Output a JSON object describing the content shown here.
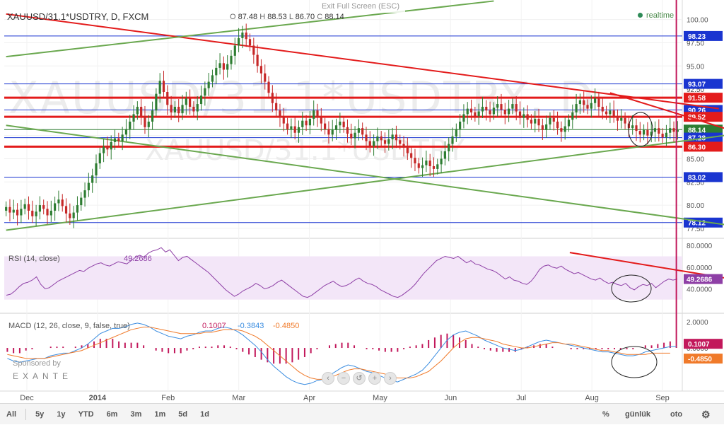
{
  "header": {
    "symbol": "XAUUSD/31.1*USDTRY, D, FXCM",
    "ohlc_open_label": "O",
    "ohlc_open": "87.48",
    "ohlc_high_label": "H",
    "ohlc_high": "88.53",
    "ohlc_low_label": "L",
    "ohlc_low": "86.70",
    "ohlc_close_label": "C",
    "ohlc_close": "88.14",
    "exit_fullscreen": "Exit Full Screen (ESC)",
    "realtime": "realtime"
  },
  "watermark": {
    "line1": "XAUUSD/31.1*USDTRY, D",
    "line2": "XAUUSD/31.1*USDTRY"
  },
  "colors": {
    "up": "#2e7d32",
    "down": "#c62828",
    "red_line": "#e31b1b",
    "green_line": "#6aa84f",
    "blue_line": "#1a35d0",
    "rsi": "#8e3fa6",
    "rsi_band": "#f3e6f8",
    "macd": "#3b8de0",
    "signal": "#f07a2a",
    "hist": "#c2185b"
  },
  "chart_data": [
    {
      "type": "candlestick",
      "title": "XAUUSD/31.1*USDTRY, D, FXCM",
      "x": [
        "Dec",
        "2014",
        "Feb",
        "Mar",
        "Apr",
        "May",
        "Jun",
        "Jul",
        "Aug",
        "Sep"
      ],
      "y_ticks": [
        "100.00",
        "97.50",
        "95.00",
        "92.50",
        "90.00",
        "87.50",
        "85.00",
        "82.50",
        "80.00",
        "77.50"
      ],
      "ylim": [
        76.5,
        101.5
      ],
      "price_levels": [
        {
          "value": 98.23,
          "label": "98.23",
          "color": "blue"
        },
        {
          "value": 93.07,
          "label": "93.07",
          "color": "blue"
        },
        {
          "value": 91.58,
          "label": "91.58",
          "color": "red"
        },
        {
          "value": 90.26,
          "label": "90.26",
          "color": "blue"
        },
        {
          "value": 89.52,
          "label": "89.52",
          "color": "red"
        },
        {
          "value": 88.14,
          "label": "88.14",
          "color": "green"
        },
        {
          "value": 87.28,
          "label": "87.28",
          "color": "blue"
        },
        {
          "value": 86.3,
          "label": "86.30",
          "color": "red"
        },
        {
          "value": 83.02,
          "label": "83.02",
          "color": "blue"
        },
        {
          "value": 78.12,
          "label": "78.12",
          "color": "blue"
        }
      ],
      "closes": [
        79.8,
        79.2,
        79.5,
        78.9,
        79.6,
        80.1,
        79.4,
        78.8,
        79.3,
        80.0,
        79.6,
        78.9,
        79.4,
        80.2,
        80.6,
        79.9,
        79.1,
        78.6,
        79.2,
        80.0,
        80.8,
        81.6,
        82.4,
        83.2,
        84.5,
        85.6,
        86.3,
        86.0,
        86.8,
        87.2,
        86.9,
        87.6,
        88.2,
        89.0,
        89.8,
        90.6,
        89.6,
        88.4,
        89.0,
        90.2,
        92.0,
        93.4,
        92.2,
        90.8,
        90.0,
        90.6,
        89.9,
        90.8,
        91.5,
        90.6,
        90.1,
        90.9,
        91.8,
        92.6,
        93.3,
        94.0,
        94.8,
        95.3,
        94.6,
        95.2,
        96.1,
        97.2,
        98.0,
        98.6,
        97.9,
        97.2,
        96.2,
        95.0,
        94.2,
        93.3,
        92.1,
        91.0,
        90.2,
        89.5,
        88.8,
        88.2,
        88.5,
        87.8,
        88.4,
        89.1,
        88.6,
        89.3,
        90.2,
        89.5,
        88.8,
        88.2,
        87.6,
        88.1,
        88.6,
        89.0,
        88.4,
        87.7,
        87.2,
        87.8,
        88.3,
        87.6,
        86.9,
        86.4,
        86.9,
        87.4,
        87.0,
        86.6,
        87.1,
        87.6,
        87.0,
        86.6,
        86.2,
        85.6,
        85.1,
        84.5,
        84.0,
        84.3,
        84.8,
        84.2,
        83.9,
        84.4,
        85.0,
        85.8,
        86.6,
        87.4,
        88.2,
        89.0,
        89.8,
        90.4,
        90.0,
        89.6,
        90.1,
        90.6,
        90.2,
        89.8,
        90.5,
        90.9,
        90.3,
        89.8,
        90.4,
        90.9,
        90.1,
        89.4,
        89.8,
        89.2,
        88.8,
        89.3,
        88.6,
        88.1,
        88.7,
        89.4,
        89.0,
        88.3,
        87.9,
        88.5,
        89.2,
        90.0,
        90.9,
        91.3,
        90.8,
        90.4,
        91.0,
        91.5,
        90.6,
        90.1,
        89.8,
        90.2,
        89.6,
        89.1,
        89.4,
        88.8,
        88.3,
        88.6,
        88.0,
        87.6,
        88.1,
        87.5,
        87.9,
        88.3,
        87.7,
        87.3,
        87.8,
        88.3,
        87.9,
        88.1
      ],
      "trendlines": [
        {
          "color": "red",
          "from": [
            0,
            100.6
          ],
          "to": [
            190,
            90.4
          ]
        },
        {
          "color": "red",
          "from": [
            161,
            92.1
          ],
          "to": [
            197,
            87.6
          ]
        },
        {
          "color": "green",
          "from": [
            0,
            77.3
          ],
          "to": [
            197,
            87.8
          ]
        },
        {
          "color": "green",
          "from": [
            0,
            88.6
          ],
          "to": [
            197,
            77.6
          ]
        },
        {
          "color": "green",
          "from": [
            0,
            96.0
          ],
          "to": [
            130,
            102.0
          ]
        }
      ]
    },
    {
      "type": "line",
      "title": "RSI (14, close)",
      "name": "RSI (14, close)",
      "last_value": "49.2686",
      "y_ticks": [
        "80.0000",
        "60.0000",
        "40.0000"
      ],
      "ylim": [
        18,
        86
      ],
      "band": [
        30,
        70
      ],
      "values": [
        34,
        35,
        38,
        42,
        45,
        46,
        48,
        51,
        44,
        40,
        41,
        44,
        47,
        49,
        51,
        53,
        55,
        57,
        56,
        59,
        61,
        63,
        64,
        62,
        61,
        63,
        65,
        64,
        63,
        66,
        69,
        71,
        69,
        73,
        75,
        76,
        78,
        74,
        76,
        71,
        66,
        69,
        70,
        67,
        64,
        61,
        58,
        55,
        51,
        47,
        43,
        39,
        36,
        33,
        35,
        38,
        40,
        42,
        45,
        43,
        40,
        41,
        43,
        46,
        48,
        45,
        42,
        39,
        36,
        33,
        32,
        34,
        37,
        40,
        43,
        45,
        47,
        44,
        42,
        43,
        45,
        48,
        50,
        47,
        45,
        44,
        42,
        39,
        37,
        35,
        33,
        32,
        34,
        37,
        40,
        44,
        49,
        54,
        58,
        62,
        66,
        68,
        70,
        69,
        68,
        70,
        67,
        64,
        66,
        63,
        62,
        60,
        58,
        57,
        55,
        52,
        49,
        51,
        48,
        47,
        45,
        44,
        47,
        52,
        58,
        61,
        62,
        60,
        59,
        61,
        58,
        56,
        54,
        55,
        53,
        51,
        49,
        48,
        50,
        47,
        45,
        46,
        44,
        43,
        45,
        41,
        39,
        42,
        44,
        43,
        45,
        41,
        44,
        47,
        49,
        48,
        49
      ],
      "trendline": {
        "from": [
          131,
          73.5
        ],
        "to": [
          197,
          30.5
        ]
      }
    },
    {
      "type": "line",
      "title": "MACD (12, 26, close, 9, false, true)",
      "series": [
        {
          "name": "MACD",
          "value": "0.1007"
        },
        {
          "name": "Signal",
          "value": "-0.3843"
        },
        {
          "name": "Histogram",
          "value": "-0.4850"
        }
      ],
      "y_ticks": [
        "2.0000",
        "0.0000"
      ],
      "ylim": [
        -3.3,
        2.6
      ],
      "macd": [
        -0.8,
        -1.0,
        -1.1,
        -1.0,
        -0.9,
        -0.8,
        -0.8,
        -0.6,
        -0.5,
        -0.4,
        -0.4,
        -0.2,
        0.0,
        0.3,
        0.7,
        1.1,
        1.3,
        1.5,
        1.5,
        1.6,
        1.8,
        1.9,
        1.8,
        1.6,
        1.3,
        1.1,
        0.9,
        0.8,
        0.7,
        0.9,
        1.0,
        1.2,
        1.3,
        1.3,
        1.5,
        1.6,
        1.5,
        1.3,
        1.0,
        0.6,
        0.2,
        -0.3,
        -0.9,
        -1.4,
        -1.8,
        -2.2,
        -2.5,
        -2.7,
        -2.8,
        -2.7,
        -2.5,
        -2.4,
        -2.1,
        -1.8,
        -1.5,
        -1.3,
        -1.4,
        -1.6,
        -1.8,
        -1.9,
        -2.1,
        -2.3,
        -2.5,
        -2.6,
        -2.4,
        -2.2,
        -2.0,
        -1.7,
        -1.2,
        -0.6,
        0.0,
        0.6,
        1.0,
        1.2,
        1.3,
        1.1,
        0.9,
        0.6,
        0.4,
        0.2,
        0.0,
        -0.1,
        -0.2,
        -0.1,
        0.1,
        0.3,
        0.5,
        0.6,
        0.5,
        0.4,
        0.3,
        0.2,
        0.1,
        0.0,
        -0.1,
        -0.2,
        -0.3,
        -0.3,
        -0.4,
        -0.5,
        -0.6,
        -0.6,
        -0.5,
        -0.3,
        -0.2,
        -0.1,
        0.0,
        0.1,
        0.1
      ],
      "signal": [
        -0.5,
        -0.6,
        -0.7,
        -0.8,
        -0.8,
        -0.8,
        -0.8,
        -0.7,
        -0.6,
        -0.5,
        -0.4,
        -0.3,
        -0.2,
        0.0,
        0.2,
        0.4,
        0.6,
        0.8,
        1.0,
        1.2,
        1.4,
        1.5,
        1.6,
        1.6,
        1.5,
        1.4,
        1.3,
        1.2,
        1.1,
        1.1,
        1.1,
        1.1,
        1.2,
        1.2,
        1.3,
        1.4,
        1.4,
        1.4,
        1.3,
        1.1,
        0.9,
        0.6,
        0.2,
        -0.2,
        -0.6,
        -1.0,
        -1.4,
        -1.8,
        -2.1,
        -2.3,
        -2.4,
        -2.4,
        -2.3,
        -2.1,
        -1.9,
        -1.7,
        -1.6,
        -1.6,
        -1.7,
        -1.8,
        -1.9,
        -2.0,
        -2.2,
        -2.3,
        -2.3,
        -2.3,
        -2.2,
        -2.0,
        -1.8,
        -1.4,
        -1.0,
        -0.5,
        0.0,
        0.4,
        0.7,
        0.8,
        0.8,
        0.7,
        0.6,
        0.5,
        0.3,
        0.2,
        0.1,
        0.0,
        0.0,
        0.1,
        0.2,
        0.3,
        0.4,
        0.4,
        0.3,
        0.3,
        0.2,
        0.1,
        0.0,
        -0.1,
        -0.2,
        -0.2,
        -0.3,
        -0.4,
        -0.5,
        -0.5,
        -0.5,
        -0.5,
        -0.4,
        -0.4,
        -0.4,
        -0.4
      ]
    }
  ],
  "bottom_bar": {
    "ranges": [
      "All",
      "5y",
      "1y",
      "YTD",
      "6m",
      "3m",
      "1m",
      "5d",
      "1d"
    ],
    "percent": "%",
    "scale": "günlük",
    "auto": "oto"
  },
  "sponsor": {
    "label": "Sponsored by",
    "brand": "EXANTE"
  }
}
